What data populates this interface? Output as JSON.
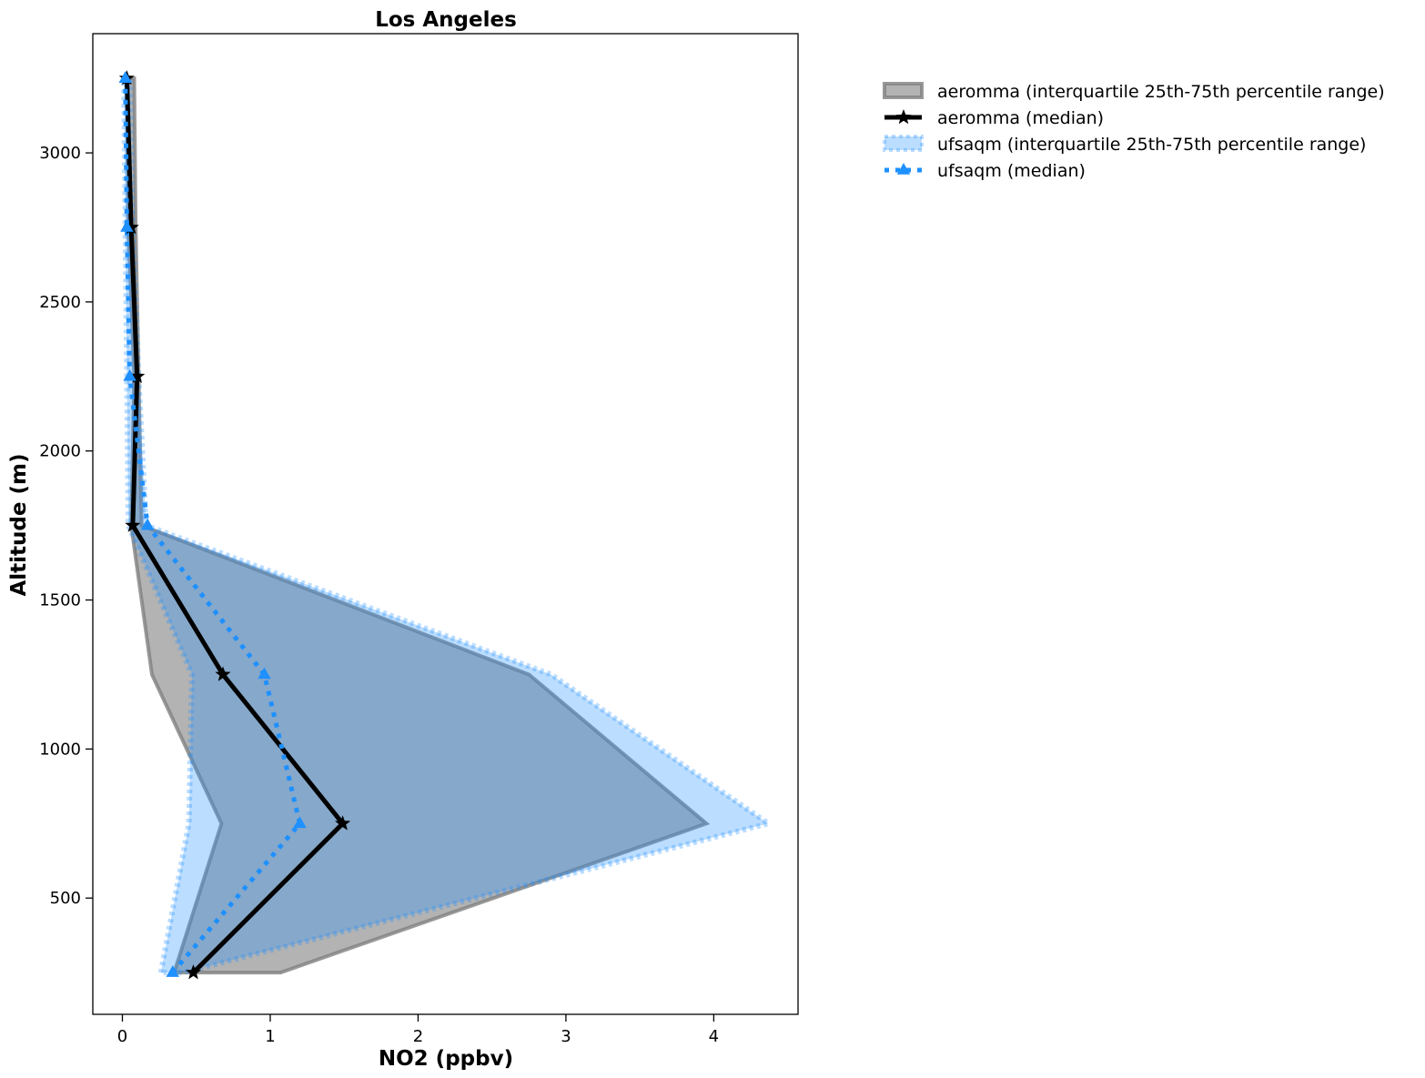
{
  "chart_data": {
    "type": "line",
    "title": "Los Angeles",
    "xlabel": "NO2 (ppbv)",
    "ylabel": "Altitude (m)",
    "xlim": [
      -0.2,
      4.57
    ],
    "ylim": [
      110,
      3400
    ],
    "xticks": [
      0,
      1,
      2,
      3,
      4
    ],
    "yticks": [
      500,
      1000,
      1500,
      2000,
      2500,
      3000
    ],
    "grid": false,
    "legend_position": "outside-right-top",
    "altitudes": [
      250,
      750,
      1250,
      1750,
      2250,
      2750,
      3250
    ],
    "series": [
      {
        "name": "aeromma (interquartile 25th-75th percentile range)",
        "kind": "band",
        "color": "#808080",
        "low": [
          0.35,
          0.67,
          0.2,
          0.06,
          0.08,
          0.04,
          0.03
        ],
        "high": [
          1.07,
          3.95,
          2.75,
          0.13,
          0.11,
          0.09,
          0.08
        ]
      },
      {
        "name": "aeromma (median)",
        "kind": "line",
        "color": "#000000",
        "marker": "star",
        "values": [
          0.48,
          1.49,
          0.68,
          0.07,
          0.1,
          0.06,
          0.03
        ]
      },
      {
        "name": "ufsaqm (interquartile 25th-75th percentile range)",
        "kind": "band",
        "color": "#1e90ff",
        "low": [
          0.26,
          0.45,
          0.47,
          0.04,
          0.03,
          0.02,
          0.01
        ],
        "high": [
          0.41,
          4.37,
          2.9,
          0.16,
          0.11,
          0.07,
          0.05
        ]
      },
      {
        "name": "ufsaqm (median)",
        "kind": "line",
        "color": "#1e90ff",
        "marker": "triangle",
        "values": [
          0.34,
          1.2,
          0.96,
          0.17,
          0.05,
          0.03,
          0.02
        ]
      }
    ]
  }
}
